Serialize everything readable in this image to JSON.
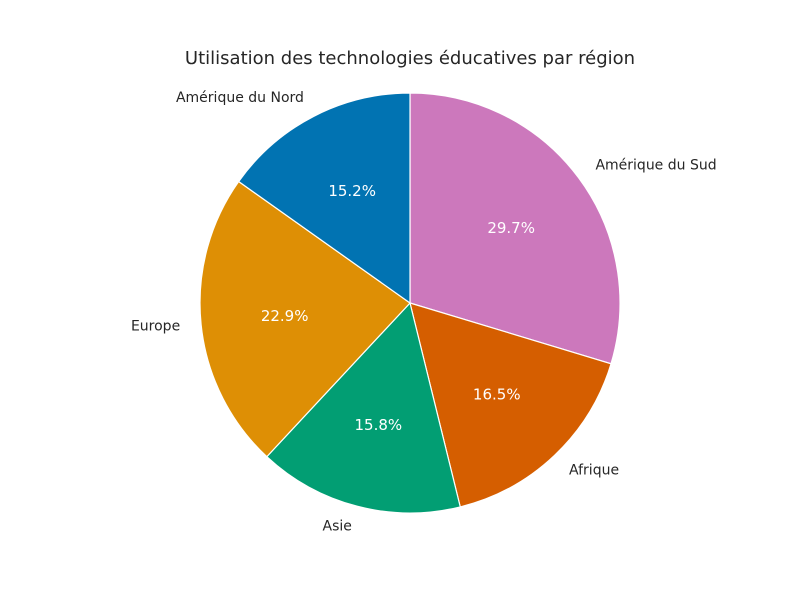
{
  "chart_data": {
    "type": "pie",
    "title": "Utilisation des technologies éducatives par région",
    "start_angle_deg": 90,
    "direction": "clockwise",
    "slices": [
      {
        "label": "Amérique du Sud",
        "value": 29.7,
        "pct_label": "29.7%",
        "color": "#cc78bc"
      },
      {
        "label": "Afrique",
        "value": 16.5,
        "pct_label": "16.5%",
        "color": "#d55e00"
      },
      {
        "label": "Asie",
        "value": 15.8,
        "pct_label": "15.8%",
        "color": "#029e73"
      },
      {
        "label": "Europe",
        "value": 22.9,
        "pct_label": "22.9%",
        "color": "#de8f05"
      },
      {
        "label": "Amérique du Nord",
        "value": 15.2,
        "pct_label": "15.2%",
        "color": "#0173b2"
      }
    ]
  }
}
